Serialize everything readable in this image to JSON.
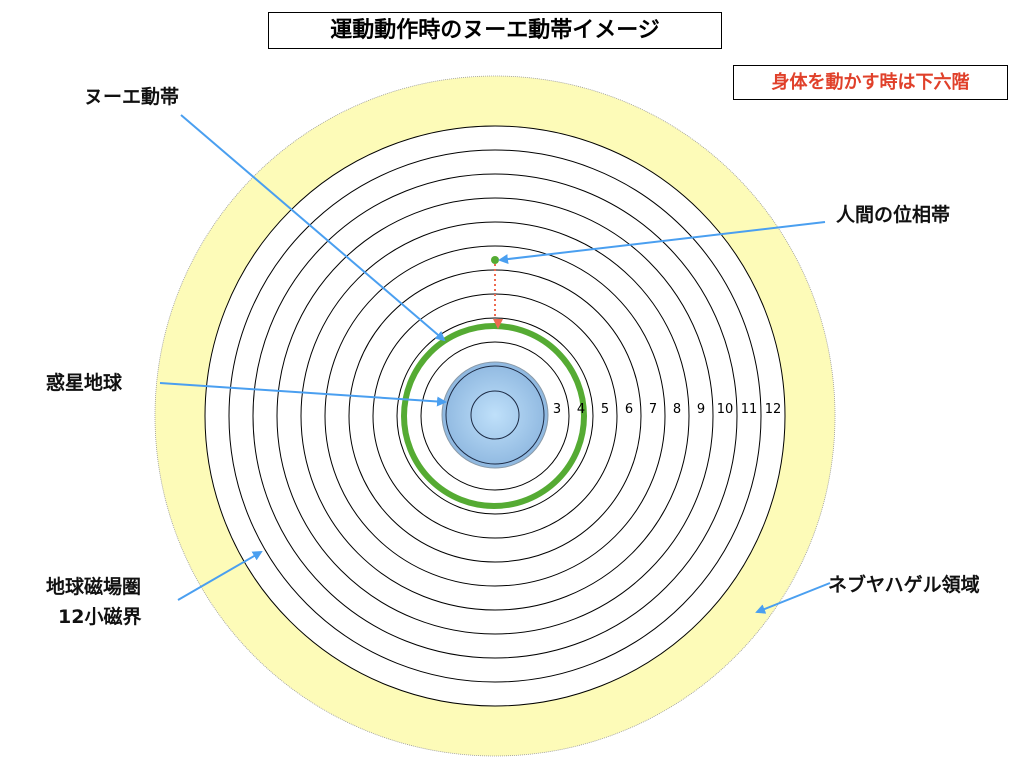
{
  "title": "運動動作時のヌーエ動帯イメージ",
  "note": "身体を動かす時は下六階",
  "labels": {
    "nue_band": "ヌーエ動帯",
    "human_phase_band": "人間の位相帯",
    "planet_earth": "惑星地球",
    "magnetosphere_line1": "地球磁場圏",
    "magnetosphere_line2": "12小磁界",
    "nebuyahagel": "ネブヤハゲル領域"
  },
  "ring_numbers": [
    "3",
    "4",
    "5",
    "6",
    "7",
    "8",
    "9",
    "10",
    "11",
    "12"
  ],
  "colors": {
    "outer_region": "#fdfbb8",
    "nue_band": "#55ab33",
    "arrow": "#4a9ff0",
    "descent_arrow": "#ee6a50",
    "planet": "#9cc4e8",
    "note_text": "#e0402a"
  }
}
